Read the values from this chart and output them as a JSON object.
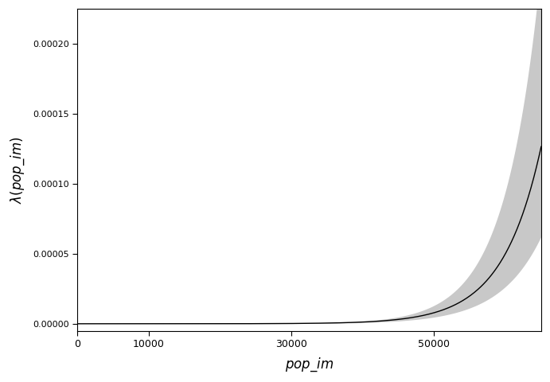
{
  "xlabel": "pop_im",
  "ylabel": "λ(pop_im)",
  "x_min": 0,
  "x_max": 65000,
  "y_min": -5e-06,
  "y_max": 0.000225,
  "xticks": [
    0,
    10000,
    30000,
    50000
  ],
  "yticks": [
    0.0,
    5e-05,
    0.0001,
    0.00015,
    0.0002
  ],
  "curve_color": "#000000",
  "band_color": "#c8c8c8",
  "background_color": "#ffffff",
  "a": -19.5,
  "b": 0.000185,
  "se_base": 0.08,
  "se_slope": 1.4,
  "n_points": 500
}
